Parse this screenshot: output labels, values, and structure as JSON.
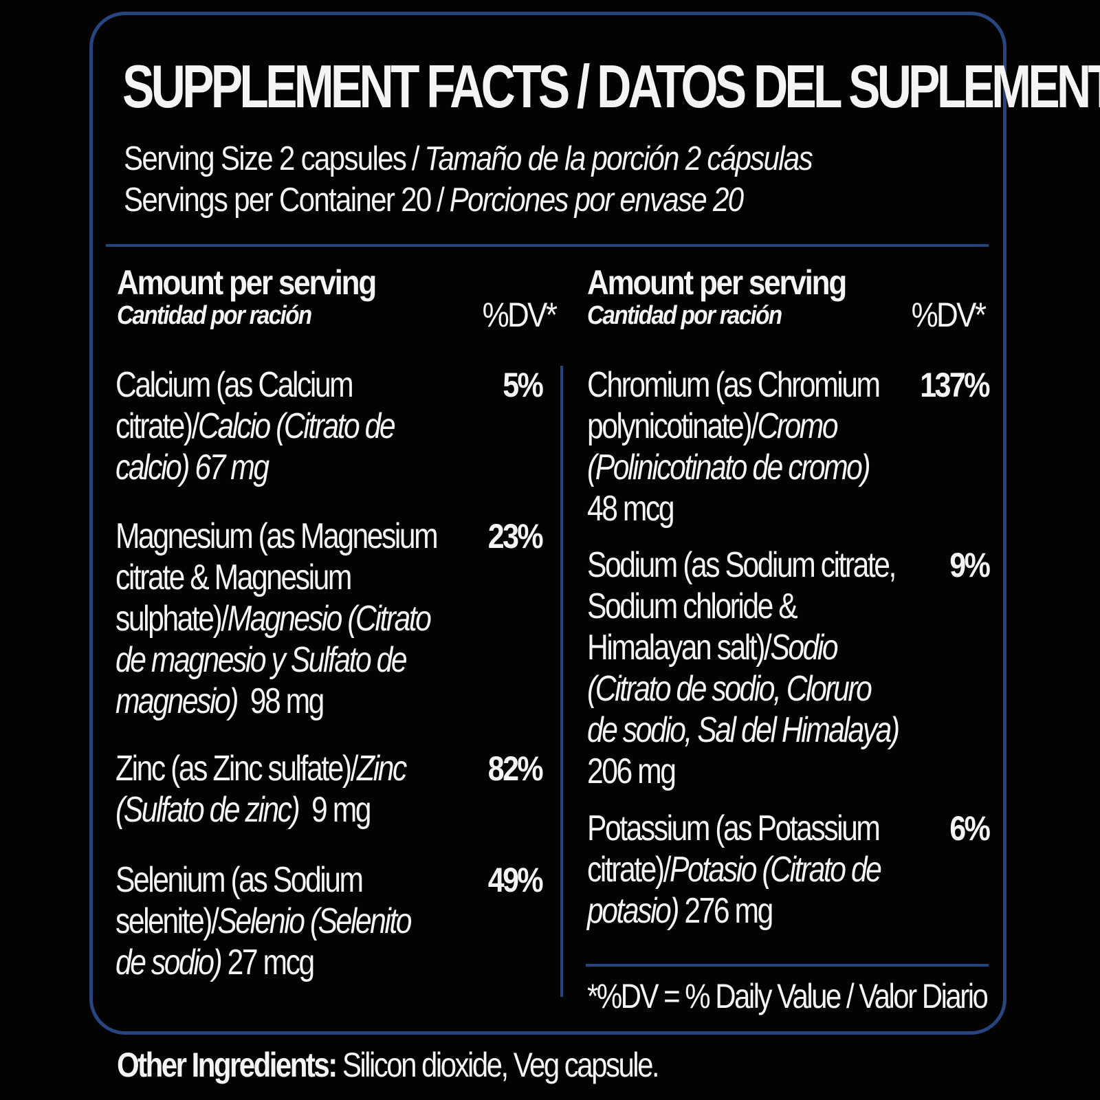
{
  "title": "SUPPLEMENT FACTS / DATOS DEL SUPLEMENTO",
  "serving": {
    "size_en": "Serving Size 2 capsules",
    "size_es": "Tamaño de la porción 2 cápsulas",
    "per_container_en": "Servings per Container 20",
    "per_container_es": "Porciones por envase 20",
    "separator": "/"
  },
  "header": {
    "amount_en": "Amount per serving",
    "amount_es": "Cantidad por ración",
    "dv": "%DV*"
  },
  "left_nutrients": [
    {
      "lines": [
        [
          {
            "t": "Calcium (as Calcium"
          }
        ],
        [
          {
            "t": "citrate)/"
          },
          {
            "t": "Calcio (Citrato de",
            "i": true
          }
        ],
        [
          {
            "t": "calcio) 67 mg",
            "i": true
          }
        ]
      ],
      "name_en": "Calcium (as Calcium citrate)",
      "name_es": "Calcio (Citrato de calcio)",
      "amount": "67 mg",
      "dv": "5%"
    },
    {
      "lines": [
        [
          {
            "t": "Magnesium (as Magnesium"
          }
        ],
        [
          {
            "t": "citrate & Magnesium"
          }
        ],
        [
          {
            "t": "sulphate)/"
          },
          {
            "t": "Magnesio (Citrato",
            "i": true
          }
        ],
        [
          {
            "t": "de magnesio y Sulfato de",
            "i": true
          }
        ],
        [
          {
            "t": "magnesio)",
            "i": true
          },
          {
            "t": "  98 mg"
          }
        ]
      ],
      "name_en": "Magnesium (as Magnesium citrate & Magnesium sulphate)",
      "name_es": "Magnesio (Citrato de magnesio y Sulfato de magnesio)",
      "amount": "98 mg",
      "dv": "23%"
    },
    {
      "lines": [
        [
          {
            "t": "Zinc (as Zinc sulfate)/"
          },
          {
            "t": "Zinc",
            "i": true
          }
        ],
        [
          {
            "t": "(Sulfato de zinc)",
            "i": true
          },
          {
            "t": "  9 mg"
          }
        ]
      ],
      "name_en": "Zinc (as Zinc sulfate)",
      "name_es": "Zinc (Sulfato de zinc)",
      "amount": "9 mg",
      "dv": "82%"
    },
    {
      "lines": [
        [
          {
            "t": "Selenium (as Sodium"
          }
        ],
        [
          {
            "t": "selenite)/"
          },
          {
            "t": "Selenio (Selenito",
            "i": true
          }
        ],
        [
          {
            "t": "de sodio)",
            "i": true
          },
          {
            "t": " 27 mcg"
          }
        ]
      ],
      "name_en": "Selenium (as Sodium selenite)",
      "name_es": "Selenio (Selenito de sodio)",
      "amount": "27 mcg",
      "dv": "49%"
    }
  ],
  "right_nutrients": [
    {
      "lines": [
        [
          {
            "t": "Chromium (as Chromium"
          }
        ],
        [
          {
            "t": "polynicotinate)/"
          },
          {
            "t": "Cromo",
            "i": true
          }
        ],
        [
          {
            "t": "(Polinicotinato de cromo)",
            "i": true
          }
        ],
        [
          {
            "t": "48 mcg"
          }
        ]
      ],
      "name_en": "Chromium (as Chromium polynicotinate)",
      "name_es": "Cromo (Polinicotinato de cromo)",
      "amount": "48 mcg",
      "dv": "137%"
    },
    {
      "lines": [
        [
          {
            "t": "Sodium (as Sodium citrate,"
          }
        ],
        [
          {
            "t": "Sodium chloride &"
          }
        ],
        [
          {
            "t": "Himalayan salt)/"
          },
          {
            "t": "Sodio",
            "i": true
          }
        ],
        [
          {
            "t": "(Citrato de sodio, Cloruro",
            "i": true
          }
        ],
        [
          {
            "t": "de sodio, Sal del Himalaya)",
            "i": true
          }
        ],
        [
          {
            "t": "206 mg"
          }
        ]
      ],
      "name_en": "Sodium (as Sodium citrate, Sodium chloride & Himalayan salt)",
      "name_es": "Sodio (Citrato de sodio, Cloruro de sodio, Sal del Himalaya)",
      "amount": "206 mg",
      "dv": "9%"
    },
    {
      "lines": [
        [
          {
            "t": "Potassium (as Potassium"
          }
        ],
        [
          {
            "t": "citrate)/"
          },
          {
            "t": "Potasio (Citrato de",
            "i": true
          }
        ],
        [
          {
            "t": "potasio)",
            "i": true
          },
          {
            "t": " 276 mg"
          }
        ]
      ],
      "name_en": "Potassium (as Potassium citrate)",
      "name_es": "Potasio (Citrato de potasio)",
      "amount": "276 mg",
      "dv": "6%"
    }
  ],
  "footnote": "*%DV = % Daily Value / Valor Diario",
  "other_ingredients": {
    "label": "Other Ingredients:",
    "value": " Silicon dioxide, Veg capsule."
  },
  "colors": {
    "background": "#030304",
    "border": "#27457f",
    "text": "#f4f4f4"
  }
}
